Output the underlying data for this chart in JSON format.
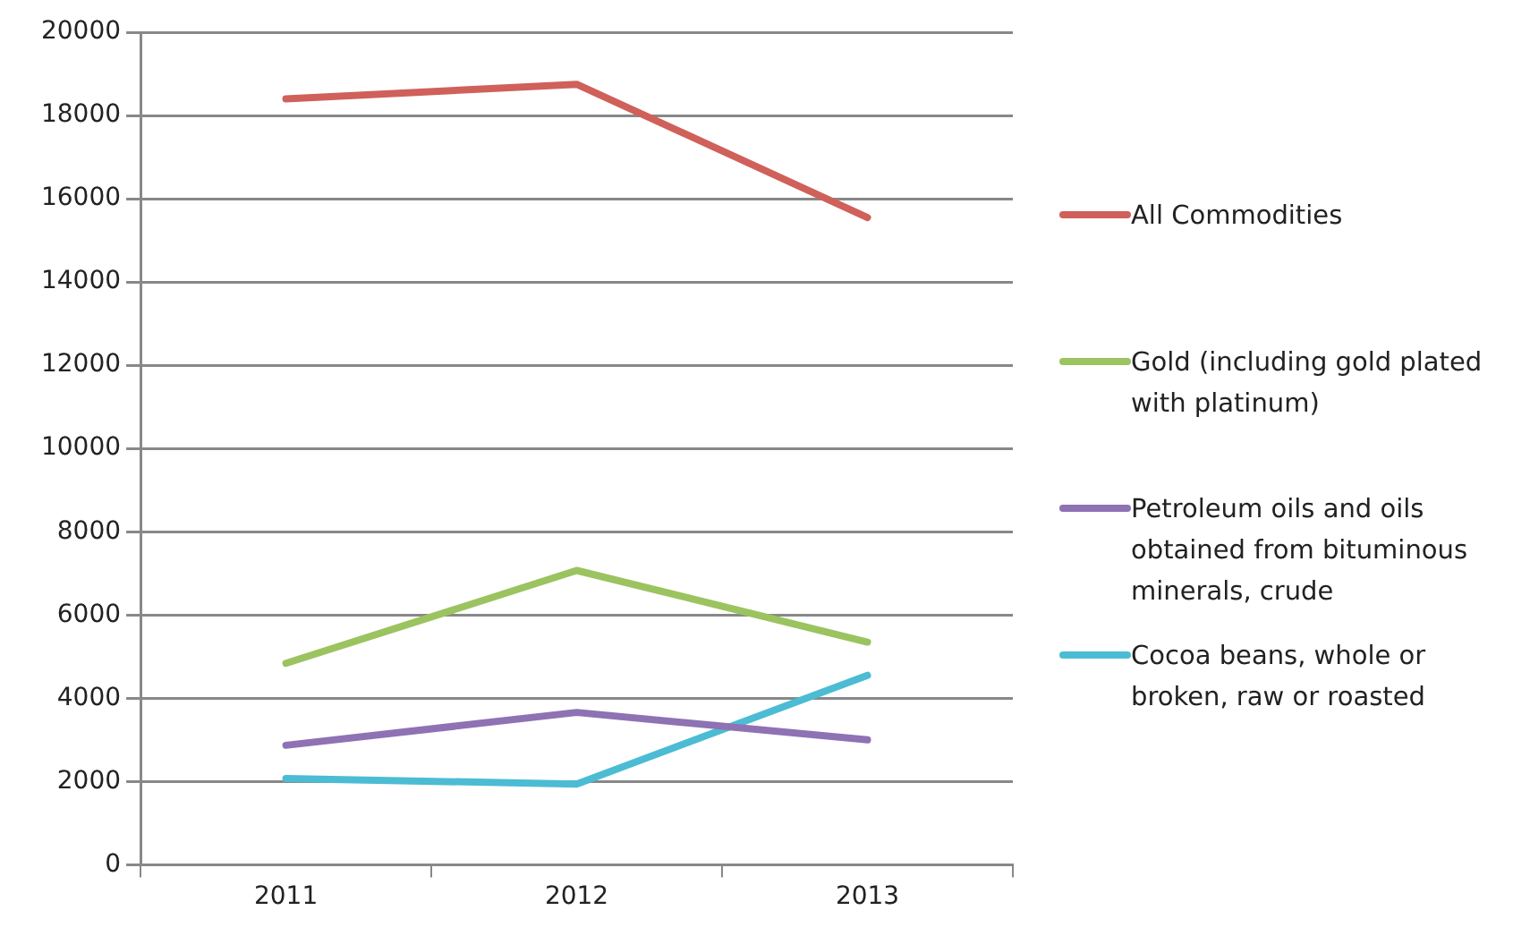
{
  "chart_data": {
    "type": "line",
    "categories": [
      "2011",
      "2012",
      "2013"
    ],
    "series": [
      {
        "name": "All Commodities",
        "color": "#d0605a",
        "values": [
          18400,
          18750,
          15550
        ]
      },
      {
        "name": "Gold (including gold plated with platinum)",
        "color": "#9bc35f",
        "values": [
          4840,
          7070,
          5350
        ]
      },
      {
        "name": "Petroleum oils and oils obtained from bituminous minerals, crude",
        "color": "#8e72b4",
        "values": [
          2870,
          3660,
          3000
        ]
      },
      {
        "name": "Cocoa beans, whole or broken, raw or roasted",
        "color": "#4bbcd4",
        "values": [
          2070,
          1940,
          4550
        ]
      }
    ],
    "ylim": [
      0,
      20000
    ],
    "yticks": [
      0,
      2000,
      4000,
      6000,
      8000,
      10000,
      12000,
      14000,
      16000,
      18000,
      20000
    ],
    "grid": "y",
    "legend": "right",
    "marker": "none",
    "line_style": "solid"
  }
}
